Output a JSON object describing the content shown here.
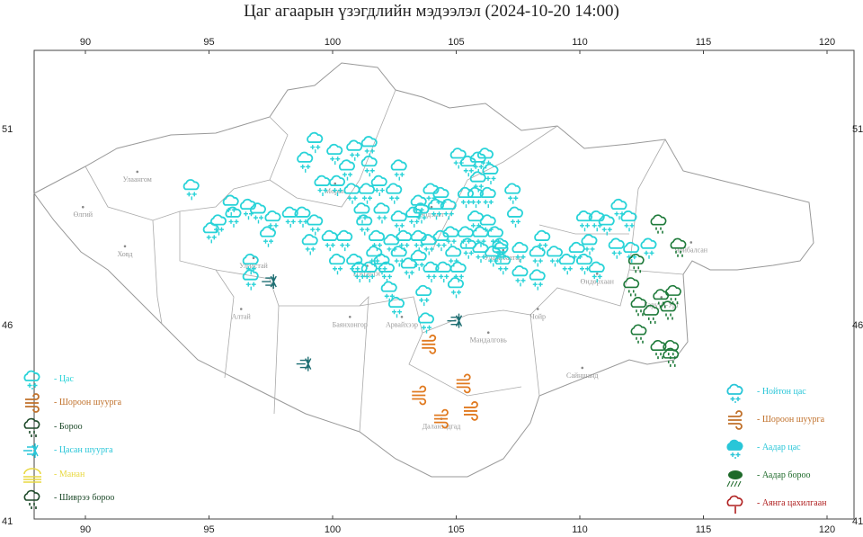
{
  "title": "Цаг агаарын үзэгдлийн мэдээлэл (2024-10-20 14:00)",
  "axes": {
    "lon_ticks": [
      "90",
      "95",
      "100",
      "105",
      "110",
      "115",
      "120"
    ],
    "lat_ticks": [
      "51",
      "46",
      "41"
    ]
  },
  "cities": [
    {
      "name": "Улаангом",
      "lon": 92.1,
      "lat": 49.9
    },
    {
      "name": "Өлгий",
      "lon": 89.9,
      "lat": 49.0
    },
    {
      "name": "Ховд",
      "lon": 91.6,
      "lat": 48.0
    },
    {
      "name": "Улиастай",
      "lon": 96.8,
      "lat": 47.7
    },
    {
      "name": "Алтай",
      "lon": 96.3,
      "lat": 46.4
    },
    {
      "name": "Мөрөн",
      "lon": 100.1,
      "lat": 49.6
    },
    {
      "name": "Цэцэрлэг",
      "lon": 101.4,
      "lat": 47.5
    },
    {
      "name": "Эрдэнэт",
      "lon": 104.0,
      "lat": 49.0
    },
    {
      "name": "Улаанбаатар",
      "lon": 106.9,
      "lat": 47.9
    },
    {
      "name": "Баянхонгор",
      "lon": 100.7,
      "lat": 46.2
    },
    {
      "name": "Арвайхээр",
      "lon": 102.8,
      "lat": 46.2
    },
    {
      "name": "Мандалговь",
      "lon": 106.3,
      "lat": 45.8
    },
    {
      "name": "Чойр",
      "lon": 108.3,
      "lat": 46.4
    },
    {
      "name": "Өндөрхаан",
      "lon": 110.7,
      "lat": 47.3
    },
    {
      "name": "Чойбалсан",
      "lon": 114.5,
      "lat": 48.1
    },
    {
      "name": "Баруун-Урт",
      "lon": 113.3,
      "lat": 46.7
    },
    {
      "name": "Сайншанд",
      "lon": 110.1,
      "lat": 44.9
    },
    {
      "name": "Даланзадгад",
      "lon": 104.4,
      "lat": 43.6
    }
  ],
  "colors": {
    "snow": "#29d3d8",
    "dust": "#e07a20",
    "rain": "#1e7a3a",
    "blowing_snow": "#1f6f73",
    "fog": "#f0e040",
    "drizzle": "#1e5a2a",
    "wet_snow": "#29c6cc",
    "heavy_rain": "#1a8a2a",
    "thunder": "#b02020"
  },
  "legend_left": [
    {
      "icon": "snow-icon",
      "label": "- Цас",
      "color": "#29d3d8"
    },
    {
      "icon": "dust-storm-icon",
      "label": "- Шороон шуурга",
      "color": "#c0702a"
    },
    {
      "icon": "rain-icon",
      "label": "- Бороо",
      "color": "#1e4a2a"
    },
    {
      "icon": "blizzard-icon",
      "label": "- Цасан шуурга",
      "color": "#29c6d8"
    },
    {
      "icon": "fog-icon",
      "label": "- Манан",
      "color": "#e8d840"
    },
    {
      "icon": "drizzle-icon",
      "label": "- Шиврээ бороо",
      "color": "#1e4a2a"
    }
  ],
  "legend_right": [
    {
      "icon": "wet-snow-icon",
      "label": "- Нойтон цас",
      "color": "#29c6d8"
    },
    {
      "icon": "dust-storm-icon",
      "label": "- Шороон шуурга",
      "color": "#c0702a"
    },
    {
      "icon": "snow-shower-icon",
      "label": "- Аадар цас",
      "color": "#29c6d8"
    },
    {
      "icon": "heavy-rain-icon",
      "label": "- Аадар бороо",
      "color": "#1e6a2a"
    },
    {
      "icon": "thunderstorm-icon",
      "label": "- Аянга цахилгаан",
      "color": "#b02020"
    }
  ],
  "observations": {
    "snow": [
      [
        94.3,
        49.5
      ],
      [
        95.1,
        48.4
      ],
      [
        95.4,
        48.6
      ],
      [
        95.9,
        49.1
      ],
      [
        96.0,
        48.8
      ],
      [
        96.6,
        49.0
      ],
      [
        97.0,
        48.9
      ],
      [
        97.4,
        48.3
      ],
      [
        97.6,
        48.7
      ],
      [
        98.3,
        48.8
      ],
      [
        98.8,
        48.8
      ],
      [
        99.3,
        48.6
      ],
      [
        99.1,
        48.1
      ],
      [
        99.9,
        48.2
      ],
      [
        100.5,
        48.2
      ],
      [
        100.2,
        47.6
      ],
      [
        99.3,
        50.7
      ],
      [
        100.1,
        50.4
      ],
      [
        100.9,
        50.5
      ],
      [
        101.5,
        50.6
      ],
      [
        98.9,
        50.2
      ],
      [
        99.6,
        49.6
      ],
      [
        100.2,
        49.6
      ],
      [
        100.8,
        49.4
      ],
      [
        101.4,
        49.4
      ],
      [
        101.9,
        49.6
      ],
      [
        100.6,
        50.0
      ],
      [
        101.5,
        50.1
      ],
      [
        102.7,
        50.0
      ],
      [
        102.5,
        49.4
      ],
      [
        102.0,
        48.9
      ],
      [
        101.2,
        48.9
      ],
      [
        101.3,
        48.6
      ],
      [
        101.8,
        48.2
      ],
      [
        102.7,
        48.7
      ],
      [
        103.3,
        48.8
      ],
      [
        103.5,
        49.1
      ],
      [
        104.0,
        49.4
      ],
      [
        104.4,
        49.3
      ],
      [
        103.6,
        48.9
      ],
      [
        104.2,
        49.0
      ],
      [
        104.7,
        49.0
      ],
      [
        105.1,
        50.3
      ],
      [
        105.5,
        50.1
      ],
      [
        105.9,
        50.2
      ],
      [
        106.2,
        50.3
      ],
      [
        106.4,
        49.9
      ],
      [
        105.9,
        49.7
      ],
      [
        105.4,
        49.3
      ],
      [
        105.8,
        49.3
      ],
      [
        106.3,
        49.3
      ],
      [
        105.8,
        48.7
      ],
      [
        106.3,
        48.6
      ],
      [
        106.0,
        48.3
      ],
      [
        105.4,
        48.3
      ],
      [
        104.8,
        48.3
      ],
      [
        104.4,
        48.2
      ],
      [
        103.9,
        48.1
      ],
      [
        103.5,
        48.2
      ],
      [
        102.9,
        48.2
      ],
      [
        102.4,
        48.1
      ],
      [
        102.0,
        47.6
      ],
      [
        101.5,
        47.4
      ],
      [
        101.1,
        47.4
      ],
      [
        100.9,
        47.6
      ],
      [
        101.7,
        47.8
      ],
      [
        102.2,
        47.4
      ],
      [
        102.7,
        47.8
      ],
      [
        103.1,
        47.5
      ],
      [
        103.5,
        47.7
      ],
      [
        104.0,
        47.4
      ],
      [
        104.5,
        47.4
      ],
      [
        104.9,
        47.8
      ],
      [
        105.1,
        47.4
      ],
      [
        105.5,
        48.0
      ],
      [
        106.0,
        47.9
      ],
      [
        106.5,
        47.8
      ],
      [
        106.8,
        48.0
      ],
      [
        106.9,
        47.6
      ],
      [
        107.6,
        47.9
      ],
      [
        107.6,
        47.3
      ],
      [
        108.3,
        47.8
      ],
      [
        108.5,
        48.2
      ],
      [
        109.0,
        47.8
      ],
      [
        109.5,
        47.6
      ],
      [
        109.9,
        47.9
      ],
      [
        110.4,
        48.1
      ],
      [
        110.2,
        48.7
      ],
      [
        110.7,
        48.7
      ],
      [
        111.1,
        48.6
      ],
      [
        111.6,
        49.0
      ],
      [
        112.0,
        48.7
      ],
      [
        111.5,
        48.0
      ],
      [
        112.1,
        47.9
      ],
      [
        112.8,
        48.0
      ],
      [
        110.2,
        47.6
      ],
      [
        110.7,
        47.4
      ],
      [
        108.3,
        47.2
      ],
      [
        103.7,
        46.8
      ],
      [
        105.0,
        47.0
      ],
      [
        102.3,
        46.9
      ],
      [
        102.6,
        46.5
      ],
      [
        103.8,
        46.1
      ],
      [
        96.7,
        47.6
      ],
      [
        96.7,
        47.2
      ],
      [
        107.3,
        49.4
      ],
      [
        106.6,
        48.3
      ],
      [
        106.8,
        47.9
      ],
      [
        107.4,
        48.8
      ]
    ],
    "rain": [
      [
        113.2,
        48.6
      ],
      [
        114.0,
        48.0
      ],
      [
        112.3,
        47.6
      ],
      [
        112.1,
        47.0
      ],
      [
        112.4,
        46.5
      ],
      [
        112.9,
        46.3
      ],
      [
        113.3,
        46.7
      ],
      [
        113.8,
        46.8
      ],
      [
        113.6,
        46.4
      ],
      [
        112.4,
        45.8
      ],
      [
        113.2,
        45.4
      ],
      [
        113.7,
        45.4
      ],
      [
        113.7,
        45.2
      ]
    ],
    "dust_storm": [
      [
        103.9,
        45.5
      ],
      [
        103.5,
        44.2
      ],
      [
        104.4,
        43.6
      ],
      [
        105.3,
        44.5
      ],
      [
        105.6,
        43.8
      ]
    ],
    "blowing_snow": [
      [
        97.5,
        47.1
      ],
      [
        98.9,
        45.0
      ],
      [
        105.0,
        46.1
      ]
    ]
  }
}
